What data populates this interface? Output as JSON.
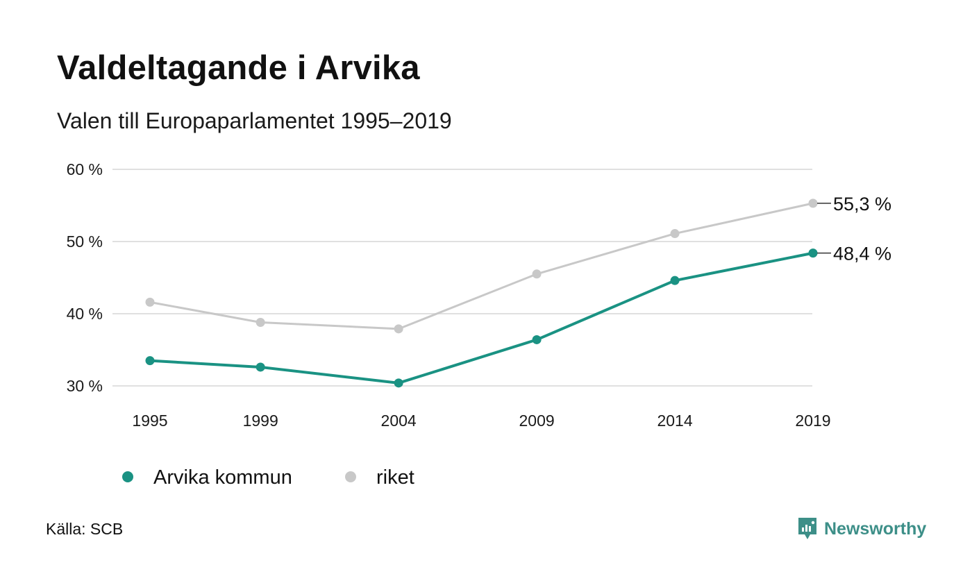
{
  "title": "Valdeltagande i Arvika",
  "subtitle": "Valen till Europaparlamentet 1995–2019",
  "source": "Källa: SCB",
  "brand": {
    "name": "Newsworthy",
    "icon": "newsworthy-logo-icon",
    "color": "#3d8f88"
  },
  "colors": {
    "arvika": "#1a9283",
    "riket": "#c8c8c8",
    "grid": "#e0e0e0"
  },
  "chart_data": {
    "type": "line",
    "title": "Valdeltagande i Arvika",
    "subtitle": "Valen till Europaparlamentet 1995–2019",
    "xlabel": "",
    "ylabel": "",
    "x": [
      "1995",
      "1999",
      "2004",
      "2009",
      "2014",
      "2019"
    ],
    "yticks": [
      30,
      40,
      50,
      60
    ],
    "ytick_labels": [
      "30 %",
      "40 %",
      "50 %",
      "60 %"
    ],
    "ylim": [
      30,
      60
    ],
    "grid": true,
    "legend_position": "bottom-left",
    "series": [
      {
        "name": "Arvika kommun",
        "color": "#1a9283",
        "values": [
          33.5,
          32.6,
          30.4,
          36.4,
          44.6,
          48.4
        ],
        "end_label": "48,4 %"
      },
      {
        "name": "riket",
        "color": "#c8c8c8",
        "values": [
          41.6,
          38.8,
          37.9,
          45.5,
          51.1,
          55.3
        ],
        "end_label": "55,3 %"
      }
    ]
  }
}
